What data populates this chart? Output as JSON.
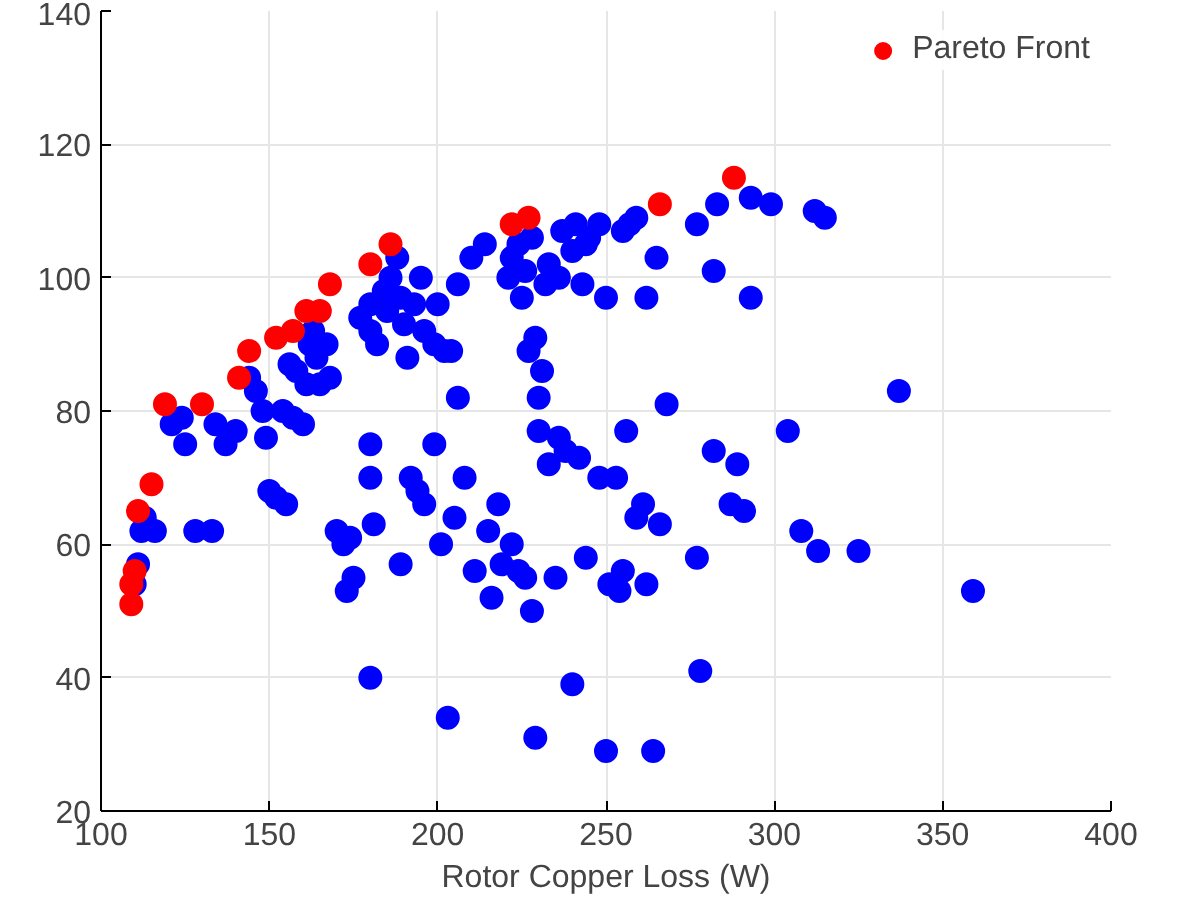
{
  "chart_data": {
    "type": "scatter",
    "xlabel": "Rotor Copper Loss (W)",
    "xlim": [
      100,
      400
    ],
    "xticks": [
      100,
      150,
      200,
      250,
      300,
      350,
      400
    ],
    "ylim": [
      20,
      140
    ],
    "yticks": [
      20,
      40,
      60,
      80,
      100,
      120,
      140
    ],
    "grid": true,
    "legend": "top right",
    "marker": "circle",
    "series": [
      {
        "color": "#0000ff",
        "x": [
          110,
          111,
          112,
          113,
          116,
          121,
          124,
          125,
          128,
          133,
          134,
          137,
          140,
          144,
          146,
          148,
          149,
          150,
          152,
          154,
          155,
          156,
          157,
          158,
          160,
          161,
          162,
          163,
          164,
          165,
          167,
          168,
          170,
          172,
          174,
          173,
          175,
          177,
          180,
          180,
          182,
          184,
          185,
          186,
          188,
          189,
          190,
          191,
          193,
          195,
          196,
          199,
          200,
          202,
          204,
          206,
          180,
          180,
          181,
          180,
          189,
          192,
          194,
          196,
          199,
          201,
          203,
          205,
          206,
          208,
          211,
          215,
          219,
          221,
          222,
          224,
          225,
          226,
          227,
          228,
          229,
          230,
          231,
          232,
          233,
          236,
          237,
          240,
          241,
          243,
          245,
          248,
          250,
          255,
          257,
          259,
          262,
          265,
          277,
          283,
          293,
          299,
          312,
          315,
          216,
          218,
          222,
          224,
          226,
          228,
          230,
          233,
          235,
          236,
          238,
          240,
          242,
          244,
          248,
          250,
          251,
          253,
          254,
          255,
          256,
          259,
          261,
          262,
          264,
          266,
          268,
          277,
          278,
          282,
          287,
          289,
          291,
          293,
          304,
          308,
          313,
          325,
          337,
          359,
          229,
          282,
          244,
          210,
          214
        ],
        "values": [
          54,
          57,
          62,
          64,
          62,
          78,
          79,
          75,
          62,
          62,
          78,
          75,
          77,
          85,
          83,
          80,
          76,
          68,
          67,
          80,
          66,
          87,
          79,
          86,
          78,
          84,
          90,
          92,
          88,
          84,
          90,
          85,
          62,
          60,
          61,
          53,
          55,
          94,
          96,
          92,
          90,
          98,
          95,
          100,
          103,
          97,
          93,
          88,
          96,
          100,
          92,
          90,
          96,
          89,
          89,
          99,
          75,
          70,
          63,
          40,
          57,
          70,
          68,
          66,
          75,
          60,
          34,
          64,
          82,
          70,
          56,
          62,
          57,
          100,
          103,
          105,
          97,
          101,
          89,
          106,
          91,
          82,
          86,
          99,
          102,
          100,
          107,
          104,
          108,
          99,
          106,
          108,
          97,
          107,
          108,
          109,
          97,
          103,
          108,
          111,
          112,
          111,
          110,
          109,
          52,
          66,
          60,
          56,
          55,
          50,
          77,
          72,
          55,
          76,
          74,
          39,
          73,
          58,
          70,
          29,
          54,
          70,
          53,
          56,
          77,
          64,
          66,
          54,
          29,
          63,
          81,
          58,
          41,
          74,
          66,
          72,
          65,
          97,
          77,
          62,
          59,
          59,
          83,
          53,
          31,
          101,
          105,
          103,
          105
        ]
      },
      {
        "name": "Pareto Front",
        "color": "#ff0000",
        "x": [
          109,
          109,
          110,
          111,
          115,
          119,
          130,
          141,
          144,
          152,
          157,
          161,
          165,
          168,
          180,
          186,
          222,
          227,
          266,
          288
        ],
        "values": [
          51,
          54,
          56,
          65,
          69,
          81,
          81,
          85,
          89,
          91,
          92,
          95,
          95,
          99,
          102,
          105,
          108,
          109,
          111,
          115
        ]
      }
    ]
  }
}
